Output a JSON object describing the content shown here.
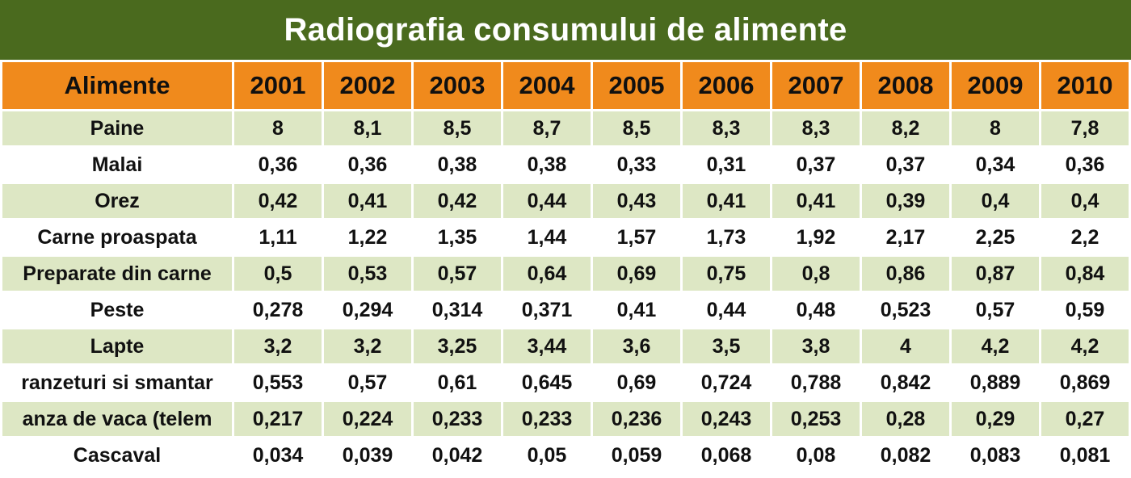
{
  "title": "Radiografia consumului de alimente",
  "chart_data": {
    "type": "table",
    "title": "Radiografia consumului de alimente",
    "columns": [
      "Alimente",
      "2001",
      "2002",
      "2003",
      "2004",
      "2005",
      "2006",
      "2007",
      "2008",
      "2009",
      "2010"
    ],
    "rows": [
      {
        "label": "Paine",
        "values": [
          "8",
          "8,1",
          "8,5",
          "8,7",
          "8,5",
          "8,3",
          "8,3",
          "8,2",
          "8",
          "7,8"
        ]
      },
      {
        "label": "Malai",
        "values": [
          "0,36",
          "0,36",
          "0,38",
          "0,38",
          "0,33",
          "0,31",
          "0,37",
          "0,37",
          "0,34",
          "0,36"
        ]
      },
      {
        "label": "Orez",
        "values": [
          "0,42",
          "0,41",
          "0,42",
          "0,44",
          "0,43",
          "0,41",
          "0,41",
          "0,39",
          "0,4",
          "0,4"
        ]
      },
      {
        "label": "Carne proaspata",
        "values": [
          "1,11",
          "1,22",
          "1,35",
          "1,44",
          "1,57",
          "1,73",
          "1,92",
          "2,17",
          "2,25",
          "2,2"
        ]
      },
      {
        "label": "Preparate din carne",
        "values": [
          "0,5",
          "0,53",
          "0,57",
          "0,64",
          "0,69",
          "0,75",
          "0,8",
          "0,86",
          "0,87",
          "0,84"
        ]
      },
      {
        "label": "Peste",
        "values": [
          "0,278",
          "0,294",
          "0,314",
          "0,371",
          "0,41",
          "0,44",
          "0,48",
          "0,523",
          "0,57",
          "0,59"
        ]
      },
      {
        "label": "Lapte",
        "values": [
          "3,2",
          "3,2",
          "3,25",
          "3,44",
          "3,6",
          "3,5",
          "3,8",
          "4",
          "4,2",
          "4,2"
        ]
      },
      {
        "label": "ranzeturi si smantar",
        "values": [
          "0,553",
          "0,57",
          "0,61",
          "0,645",
          "0,69",
          "0,724",
          "0,788",
          "0,842",
          "0,889",
          "0,869"
        ]
      },
      {
        "label": "anza de vaca (telem",
        "values": [
          "0,217",
          "0,224",
          "0,233",
          "0,233",
          "0,236",
          "0,243",
          "0,253",
          "0,28",
          "0,29",
          "0,27"
        ]
      },
      {
        "label": "Cascaval",
        "values": [
          "0,034",
          "0,039",
          "0,042",
          "0,05",
          "0,059",
          "0,068",
          "0,08",
          "0,082",
          "0,083",
          "0,081"
        ]
      }
    ]
  },
  "colors": {
    "title_bg": "#4a6a1e",
    "header_bg": "#f08a1c",
    "row_alt_bg": "#dde7c4",
    "row_bg": "#ffffff"
  }
}
